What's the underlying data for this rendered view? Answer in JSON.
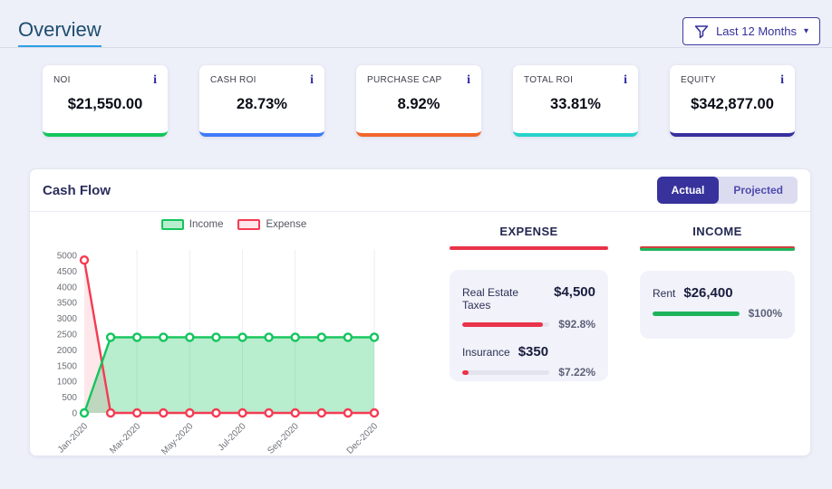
{
  "header": {
    "title": "Overview",
    "underline_color": "#2d9fe8",
    "filter": {
      "label": "Last 12 Months"
    }
  },
  "icons": {
    "info": "i",
    "caret_down": "▾"
  },
  "stat_cards": [
    {
      "title": "NOI",
      "value": "$21,550.00",
      "accent": "#13c55c"
    },
    {
      "title": "CASH ROI",
      "value": "28.73%",
      "accent": "#3e7bfa"
    },
    {
      "title": "PURCHASE CAP",
      "value": "8.92%",
      "accent": "#f2662a"
    },
    {
      "title": "TOTAL ROI",
      "value": "33.81%",
      "accent": "#28d2cb"
    },
    {
      "title": "EQUITY",
      "value": "$342,877.00",
      "accent": "#372f9e"
    }
  ],
  "cash_flow": {
    "title": "Cash Flow",
    "toggles": [
      {
        "label": "Actual",
        "active": true
      },
      {
        "label": "Projected",
        "active": false
      }
    ],
    "active_toggle_color": "#38329c",
    "expense_panel": {
      "title": "EXPENSE",
      "accent": "#e93349",
      "items": [
        {
          "label": "Real Estate Taxes",
          "value": "$4,500",
          "percent": 92.8,
          "percent_label": "$92.8%"
        },
        {
          "label": "Insurance",
          "value": "$350",
          "percent": 7.22,
          "percent_label": "$7.22%"
        }
      ]
    },
    "income_panel": {
      "title": "INCOME",
      "accent": "#1eb35b",
      "accent_top": "#cf4040",
      "items": [
        {
          "label": "Rent",
          "value": "$26,400",
          "percent": 100,
          "percent_label": "$100%"
        }
      ]
    }
  },
  "chart_data": {
    "type": "area",
    "title": "Cash Flow (Actual, Last 12 Months)",
    "x": [
      "Jan-2020",
      "Feb-2020",
      "Mar-2020",
      "Apr-2020",
      "May-2020",
      "Jun-2020",
      "Jul-2020",
      "Aug-2020",
      "Sep-2020",
      "Oct-2020",
      "Nov-2020",
      "Dec-2020"
    ],
    "x_label_indices": [
      0,
      2,
      4,
      6,
      8,
      11
    ],
    "grid_x_indices": [
      2,
      4,
      6,
      8,
      11
    ],
    "series": [
      {
        "name": "Income",
        "color": "#13c55c",
        "fill": "rgba(19,197,92,0.30)",
        "values": [
          0,
          2400,
          2400,
          2400,
          2400,
          2400,
          2400,
          2400,
          2400,
          2400,
          2400,
          2400
        ]
      },
      {
        "name": "Expense",
        "color": "#f43b53",
        "fill": "rgba(244,59,83,0.12)",
        "values": [
          4850,
          0,
          0,
          0,
          0,
          0,
          0,
          0,
          0,
          0,
          0,
          0
        ]
      }
    ],
    "ylim": [
      0,
      5000
    ],
    "ytick_step": 500,
    "grid": "vertical-only",
    "legend_position": "top-center"
  }
}
